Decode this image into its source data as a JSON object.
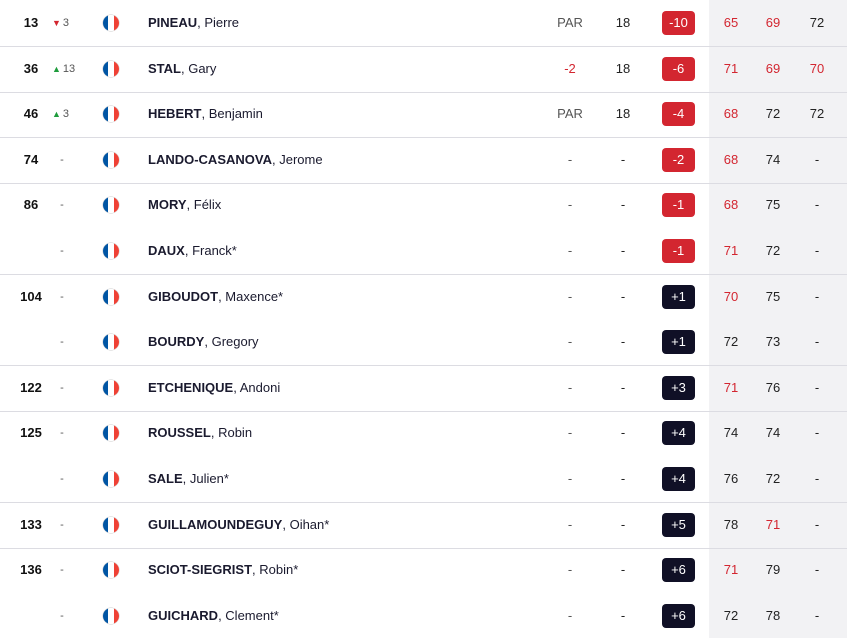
{
  "colors": {
    "under_par_bg": "#d32630",
    "over_par_bg": "#101026",
    "under_par_text": "#d32630",
    "move_up": "#1e9c3c",
    "move_down": "#d32630",
    "flag_blue": "#0055a4",
    "flag_white": "#ffffff",
    "flag_red": "#ef4135"
  },
  "flag_icon": "france-flag-icon",
  "rows": [
    {
      "pos": "13",
      "move_dir": "down",
      "move": "3",
      "last": "PINEAU",
      "first": "Pierre",
      "today": "PAR",
      "today_red": false,
      "thru": "18",
      "score": "-10",
      "score_type": "under",
      "r1": "65",
      "r1_red": true,
      "r2": "69",
      "r2_red": true,
      "r3": "72",
      "r3_red": false,
      "sep": true
    },
    {
      "pos": "36",
      "move_dir": "up",
      "move": "13",
      "last": "STAL",
      "first": "Gary",
      "today": "-2",
      "today_red": true,
      "thru": "18",
      "score": "-6",
      "score_type": "under",
      "r1": "71",
      "r1_red": true,
      "r2": "69",
      "r2_red": true,
      "r3": "70",
      "r3_red": true,
      "sep": true
    },
    {
      "pos": "46",
      "move_dir": "up",
      "move": "3",
      "last": "HEBERT",
      "first": "Benjamin",
      "today": "PAR",
      "today_red": false,
      "thru": "18",
      "score": "-4",
      "score_type": "under",
      "r1": "68",
      "r1_red": true,
      "r2": "72",
      "r2_red": false,
      "r3": "72",
      "r3_red": false,
      "sep": true
    },
    {
      "pos": "74",
      "move_dir": "none",
      "move": "-",
      "last": "LANDO-CASANOVA",
      "first": "Jerome",
      "today": "-",
      "today_red": false,
      "thru": "-",
      "score": "-2",
      "score_type": "under",
      "r1": "68",
      "r1_red": true,
      "r2": "74",
      "r2_red": false,
      "r3": "-",
      "r3_red": false,
      "sep": true
    },
    {
      "pos": "86",
      "move_dir": "none",
      "move": "-",
      "last": "MORY",
      "first": "Félix",
      "today": "-",
      "today_red": false,
      "thru": "-",
      "score": "-1",
      "score_type": "under",
      "r1": "68",
      "r1_red": true,
      "r2": "75",
      "r2_red": false,
      "r3": "-",
      "r3_red": false,
      "sep": false
    },
    {
      "pos": "",
      "move_dir": "none",
      "move": "-",
      "last": "DAUX",
      "first": "Franck*",
      "today": "-",
      "today_red": false,
      "thru": "-",
      "score": "-1",
      "score_type": "under",
      "r1": "71",
      "r1_red": true,
      "r2": "72",
      "r2_red": false,
      "r3": "-",
      "r3_red": false,
      "sep": true
    },
    {
      "pos": "104",
      "move_dir": "none",
      "move": "-",
      "last": "GIBOUDOT",
      "first": "Maxence*",
      "today": "-",
      "today_red": false,
      "thru": "-",
      "score": "+1",
      "score_type": "over",
      "r1": "70",
      "r1_red": true,
      "r2": "75",
      "r2_red": false,
      "r3": "-",
      "r3_red": false,
      "sep": false
    },
    {
      "pos": "",
      "move_dir": "none",
      "move": "-",
      "last": "BOURDY",
      "first": "Gregory",
      "today": "-",
      "today_red": false,
      "thru": "-",
      "score": "+1",
      "score_type": "over",
      "r1": "72",
      "r1_red": false,
      "r2": "73",
      "r2_red": false,
      "r3": "-",
      "r3_red": false,
      "sep": true
    },
    {
      "pos": "122",
      "move_dir": "none",
      "move": "-",
      "last": "ETCHENIQUE",
      "first": "Andoni",
      "today": "-",
      "today_red": false,
      "thru": "-",
      "score": "+3",
      "score_type": "over",
      "r1": "71",
      "r1_red": true,
      "r2": "76",
      "r2_red": false,
      "r3": "-",
      "r3_red": false,
      "sep": true
    },
    {
      "pos": "125",
      "move_dir": "none",
      "move": "-",
      "last": "ROUSSEL",
      "first": "Robin",
      "today": "-",
      "today_red": false,
      "thru": "-",
      "score": "+4",
      "score_type": "over",
      "r1": "74",
      "r1_red": false,
      "r2": "74",
      "r2_red": false,
      "r3": "-",
      "r3_red": false,
      "sep": false
    },
    {
      "pos": "",
      "move_dir": "none",
      "move": "-",
      "last": "SALE",
      "first": "Julien*",
      "today": "-",
      "today_red": false,
      "thru": "-",
      "score": "+4",
      "score_type": "over",
      "r1": "76",
      "r1_red": false,
      "r2": "72",
      "r2_red": false,
      "r3": "-",
      "r3_red": false,
      "sep": true
    },
    {
      "pos": "133",
      "move_dir": "none",
      "move": "-",
      "last": "GUILLAMOUNDEGUY",
      "first": "Oihan*",
      "today": "-",
      "today_red": false,
      "thru": "-",
      "score": "+5",
      "score_type": "over",
      "r1": "78",
      "r1_red": false,
      "r2": "71",
      "r2_red": true,
      "r3": "-",
      "r3_red": false,
      "sep": true
    },
    {
      "pos": "136",
      "move_dir": "none",
      "move": "-",
      "last": "SCIOT-SIEGRIST",
      "first": "Robin*",
      "today": "-",
      "today_red": false,
      "thru": "-",
      "score": "+6",
      "score_type": "over",
      "r1": "71",
      "r1_red": true,
      "r2": "79",
      "r2_red": false,
      "r3": "-",
      "r3_red": false,
      "sep": false
    },
    {
      "pos": "",
      "move_dir": "none",
      "move": "-",
      "last": "GUICHARD",
      "first": "Clement*",
      "today": "-",
      "today_red": false,
      "thru": "-",
      "score": "+6",
      "score_type": "over",
      "r1": "72",
      "r1_red": false,
      "r2": "78",
      "r2_red": false,
      "r3": "-",
      "r3_red": false,
      "sep": false
    }
  ]
}
